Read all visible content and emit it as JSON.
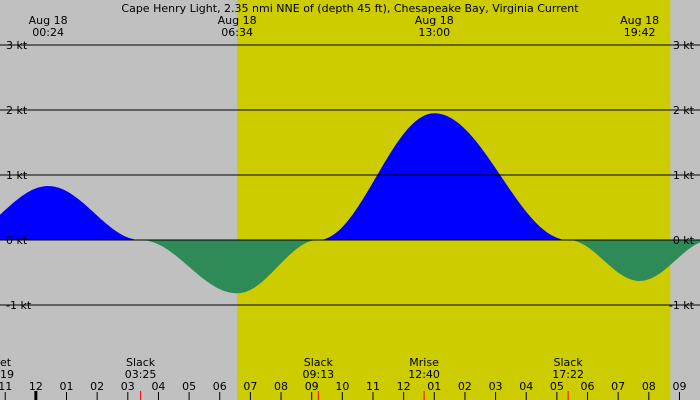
{
  "chart_data": {
    "type": "area",
    "title": "Cape Henry Light, 2.35 nmi NNE of (depth 45 ft), Chesapeake Bay, Virginia Current",
    "y_unit": "kt",
    "ylim": [
      -1.5,
      3.0
    ],
    "xlim_hours": [
      10.83,
      33.67
    ],
    "y_ticks": [
      {
        "value": 3,
        "label": "3 kt"
      },
      {
        "value": 2,
        "label": "2 kt"
      },
      {
        "value": 1,
        "label": "1 kt"
      },
      {
        "value": 0,
        "label": "0 kt"
      },
      {
        "value": -1,
        "label": "-1 kt"
      }
    ],
    "daylight_hours": [
      18.567,
      32.7
    ],
    "colors": {
      "background": "#c0c0c0",
      "daylight": "#cccc00",
      "flood": "#0000ff",
      "ebb": "#2e8b57",
      "grid": "#000000",
      "marker": "#ff0000"
    },
    "top_events": [
      {
        "line1": "Aug 18",
        "line2": "00:24",
        "hour": 12.4
      },
      {
        "line1": "Aug 18",
        "line2": "06:34",
        "hour": 18.567
      },
      {
        "line1": "Aug 18",
        "line2": "13:00",
        "hour": 25.0
      },
      {
        "line1": "Aug 18",
        "line2": "19:42",
        "hour": 31.7
      }
    ],
    "extrema": [
      {
        "hour": 12.4,
        "value": 0.83
      },
      {
        "hour": 18.567,
        "value": -0.82
      },
      {
        "hour": 25.0,
        "value": 1.95
      },
      {
        "hour": 31.7,
        "value": -0.63
      }
    ],
    "slack_hours": [
      15.417,
      21.217,
      29.367
    ],
    "x_tick_labels": [
      "11",
      "12",
      "01",
      "02",
      "03",
      "04",
      "05",
      "06",
      "07",
      "08",
      "09",
      "10",
      "11",
      "12",
      "01",
      "02",
      "03",
      "04",
      "05",
      "06",
      "07",
      "08",
      "09"
    ],
    "x_tick_start_hour": 11,
    "bottom_events": [
      {
        "label": "et",
        "time": "19",
        "hour": 10.9,
        "align": "start"
      },
      {
        "label": "Slack",
        "time": "03:25",
        "hour": 15.417,
        "align": "middle"
      },
      {
        "label": "Slack",
        "time": "09:13",
        "hour": 21.217,
        "align": "middle"
      },
      {
        "label": "Mrise",
        "time": "12:40",
        "hour": 24.667,
        "align": "middle"
      },
      {
        "label": "Slack",
        "time": "17:22",
        "hour": 29.367,
        "align": "middle"
      }
    ],
    "now_marker_hour": 12.0,
    "red_marker_hours": [
      15.417,
      21.217,
      24.667,
      29.367
    ]
  }
}
